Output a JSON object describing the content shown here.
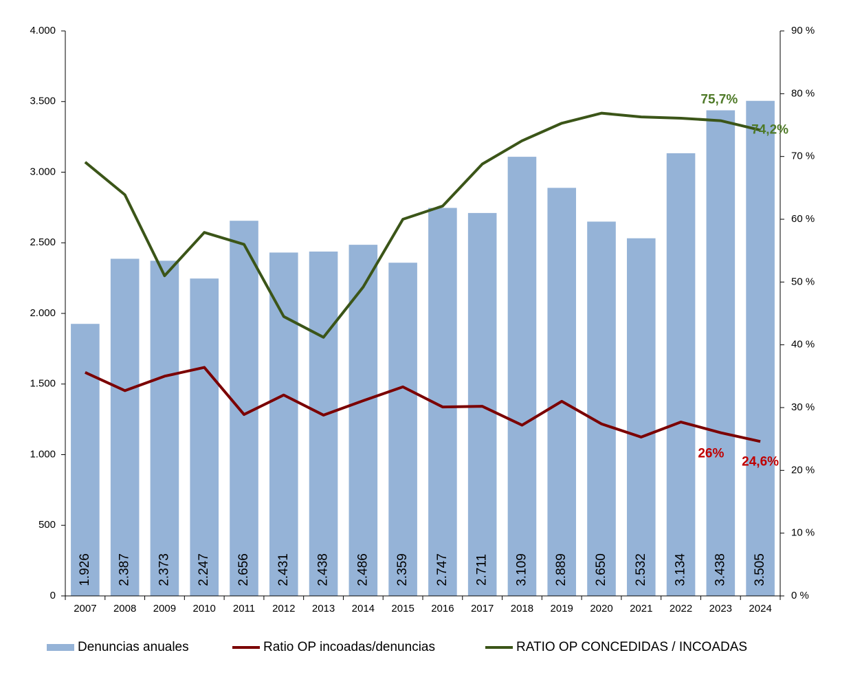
{
  "chart_data": {
    "type": "bar",
    "categories": [
      "2007",
      "2008",
      "2009",
      "2010",
      "2011",
      "2012",
      "2013",
      "2014",
      "2015",
      "2016",
      "2017",
      "2018",
      "2019",
      "2020",
      "2021",
      "2022",
      "2023",
      "2024"
    ],
    "series": [
      {
        "name": "Denuncias anuales",
        "type": "bar",
        "axis": "y",
        "color": "#95b3d7",
        "values": [
          1926,
          2387,
          2373,
          2247,
          2656,
          2431,
          2438,
          2486,
          2359,
          2747,
          2711,
          3109,
          2889,
          2650,
          2532,
          3134,
          3438,
          3505
        ],
        "value_labels": [
          "1.926",
          "2.387",
          "2.373",
          "2.247",
          "2.656",
          "2.431",
          "2.438",
          "2.486",
          "2.359",
          "2.747",
          "2.711",
          "3.109",
          "2.889",
          "2.650",
          "2.532",
          "3.134",
          "3.438",
          "3.505"
        ]
      },
      {
        "name": "Ratio OP incoadas/denuncias",
        "type": "line",
        "axis": "y2",
        "color": "#7b0000",
        "label_color": "#c00000",
        "values": [
          35.6,
          32.7,
          35.0,
          36.4,
          28.9,
          32.0,
          28.8,
          31.1,
          33.3,
          30.1,
          30.2,
          27.2,
          31.0,
          27.4,
          25.3,
          27.7,
          26,
          24.6
        ],
        "value_labels": [
          null,
          null,
          null,
          null,
          null,
          null,
          null,
          null,
          null,
          null,
          null,
          null,
          null,
          null,
          null,
          null,
          "26%",
          "24,6%"
        ]
      },
      {
        "name": "RATIO OP CONCEDIDAS / INCOADAS",
        "type": "line",
        "axis": "y2",
        "color": "#3b5518",
        "label_color": "#4f7a28",
        "values": [
          69.1,
          63.9,
          51.0,
          57.9,
          56.0,
          44.5,
          41.2,
          49.2,
          60.0,
          62.1,
          68.8,
          72.5,
          75.3,
          76.9,
          76.3,
          76.1,
          75.7,
          74.2
        ],
        "value_labels": [
          null,
          null,
          null,
          null,
          null,
          null,
          null,
          null,
          null,
          null,
          null,
          null,
          null,
          null,
          null,
          null,
          "75,7%",
          "74,2%"
        ]
      }
    ],
    "ylim": [
      0,
      4000
    ],
    "yticks": [
      0,
      500,
      {
        "value": 1000,
        "label": "1.000"
      },
      {
        "value": 1500,
        "label": "1.500"
      },
      {
        "value": 2000,
        "label": "2.000"
      },
      {
        "value": 2500,
        "label": "2.500"
      },
      {
        "value": 3000,
        "label": "3.000"
      },
      {
        "value": 3500,
        "label": "3.500"
      },
      {
        "value": 4000,
        "label": "4.000"
      }
    ],
    "y2lim": [
      0,
      90
    ],
    "y2ticks": [
      {
        "value": 0,
        "label": "0 %"
      },
      {
        "value": 10,
        "label": "10 %"
      },
      {
        "value": 20,
        "label": "20 %"
      },
      {
        "value": 30,
        "label": "30 %"
      },
      {
        "value": 40,
        "label": "40 %"
      },
      {
        "value": 50,
        "label": "50 %"
      },
      {
        "value": 60,
        "label": "60 %"
      },
      {
        "value": 70,
        "label": "70 %"
      },
      {
        "value": 80,
        "label": "80 %"
      },
      {
        "value": 90,
        "label": "90 %"
      }
    ],
    "legend": "bottom"
  }
}
